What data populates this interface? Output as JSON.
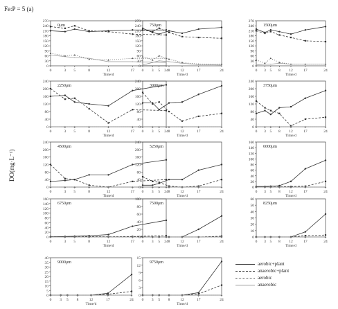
{
  "figure": {
    "title": "Fe:P = 5 (a)",
    "y_axis_title": "DO(mg·L⁻¹)",
    "x_axis_label": "Time/d"
  },
  "legend": [
    "aerobic+plant",
    "anaerobic+plant",
    "aerobic",
    "anaerobic"
  ],
  "chart_data": [
    {
      "type": "line",
      "title": "0μm",
      "x": [
        0,
        3,
        5,
        8,
        12,
        17,
        24
      ],
      "ylim": [
        0,
        270
      ],
      "yticks": [
        0,
        30,
        60,
        90,
        120,
        150,
        180,
        210,
        240,
        270
      ],
      "series": [
        {
          "name": "aerobic+plant",
          "values": [
            210,
            205,
            220,
            205,
            210,
            215,
            215
          ]
        },
        {
          "name": "anaerobic+plant",
          "values": [
            235,
            225,
            240,
            210,
            205,
            190,
            185
          ]
        },
        {
          "name": "aerobic",
          "values": [
            75,
            60,
            65,
            40,
            35,
            45,
            45
          ]
        },
        {
          "name": "anaerobic",
          "values": [
            65,
            55,
            50,
            45,
            25,
            25,
            20
          ]
        }
      ]
    },
    {
      "type": "line",
      "title": "750μm",
      "x": [
        0,
        3,
        5,
        8,
        12,
        17,
        24
      ],
      "ylim": [
        0,
        270
      ],
      "yticks": [
        0,
        30,
        60,
        90,
        120,
        150,
        180,
        210,
        240,
        270
      ],
      "series": [
        {
          "name": "aerobic+plant",
          "values": [
            225,
            200,
            190,
            210,
            195,
            220,
            230
          ]
        },
        {
          "name": "anaerobic+plant",
          "values": [
            215,
            205,
            225,
            200,
            175,
            170,
            165
          ]
        },
        {
          "name": "aerobic",
          "values": [
            55,
            35,
            60,
            40,
            20,
            10,
            10
          ]
        },
        {
          "name": "anaerobic",
          "values": [
            5,
            20,
            30,
            25,
            15,
            8,
            5
          ]
        }
      ]
    },
    {
      "type": "line",
      "title": "1500μm",
      "x": [
        0,
        3,
        5,
        8,
        12,
        17,
        24
      ],
      "ylim": [
        0,
        270
      ],
      "yticks": [
        0,
        30,
        60,
        90,
        120,
        150,
        180,
        210,
        240,
        270
      ],
      "series": [
        {
          "name": "aerobic+plant",
          "values": [
            220,
            200,
            215,
            205,
            190,
            215,
            235
          ]
        },
        {
          "name": "anaerobic+plant",
          "values": [
            210,
            195,
            205,
            185,
            170,
            150,
            145
          ]
        },
        {
          "name": "aerobic",
          "values": [
            35,
            15,
            45,
            20,
            10,
            10,
            10
          ]
        },
        {
          "name": "anaerobic",
          "values": [
            5,
            10,
            10,
            15,
            10,
            10,
            10
          ]
        }
      ]
    },
    {
      "type": "line",
      "title": "2250μm",
      "x": [
        0,
        3,
        5,
        8,
        12,
        17,
        24
      ],
      "ylim": [
        0,
        240
      ],
      "yticks": [
        0,
        40,
        80,
        120,
        160,
        200,
        240
      ],
      "series": [
        {
          "name": "aerobic+plant",
          "values": [
            160,
            165,
            130,
            120,
            110,
            190,
            220
          ]
        },
        {
          "name": "anaerobic+plant",
          "values": [
            200,
            145,
            150,
            95,
            20,
            90,
            85
          ]
        },
        {
          "name": "aerobic",
          "values": [
            0,
            0,
            0,
            0,
            0,
            0,
            0
          ]
        },
        {
          "name": "anaerobic",
          "values": [
            0,
            0,
            0,
            0,
            0,
            0,
            0
          ]
        }
      ]
    },
    {
      "type": "line",
      "title": "3000μm",
      "x": [
        0,
        3,
        5,
        8,
        12,
        17,
        24
      ],
      "ylim": [
        0,
        240
      ],
      "yticks": [
        0,
        40,
        80,
        120,
        160,
        200,
        240
      ],
      "series": [
        {
          "name": "aerobic+plant",
          "values": [
            125,
            125,
            90,
            125,
            130,
            170,
            215
          ]
        },
        {
          "name": "anaerobic+plant",
          "values": [
            180,
            120,
            130,
            80,
            30,
            55,
            70
          ]
        },
        {
          "name": "aerobic",
          "values": [
            0,
            0,
            0,
            0,
            0,
            0,
            0
          ]
        },
        {
          "name": "anaerobic",
          "values": [
            0,
            0,
            0,
            0,
            0,
            0,
            0
          ]
        }
      ]
    },
    {
      "type": "line",
      "title": "3750μm",
      "x": [
        0,
        3,
        5,
        8,
        12,
        17,
        24
      ],
      "ylim": [
        0,
        240
      ],
      "yticks": [
        0,
        40,
        80,
        120,
        160,
        200,
        240
      ],
      "series": [
        {
          "name": "aerobic+plant",
          "values": [
            70,
            85,
            65,
            100,
            105,
            150,
            190
          ]
        },
        {
          "name": "anaerobic+plant",
          "values": [
            135,
            100,
            85,
            70,
            5,
            40,
            50
          ]
        },
        {
          "name": "aerobic",
          "values": [
            0,
            0,
            0,
            0,
            0,
            0,
            0
          ]
        },
        {
          "name": "anaerobic",
          "values": [
            0,
            0,
            0,
            0,
            0,
            0,
            0
          ]
        }
      ]
    },
    {
      "type": "line",
      "title": "4500μm",
      "x": [
        0,
        3,
        5,
        8,
        12,
        17,
        24
      ],
      "ylim": [
        0,
        240
      ],
      "yticks": [
        0,
        40,
        80,
        120,
        160,
        200,
        240
      ],
      "series": [
        {
          "name": "aerobic+plant",
          "values": [
            30,
            35,
            40,
            65,
            65,
            120,
            145
          ]
        },
        {
          "name": "anaerobic+plant",
          "values": [
            120,
            45,
            40,
            10,
            0,
            30,
            40
          ]
        },
        {
          "name": "aerobic",
          "values": [
            0,
            0,
            0,
            0,
            0,
            0,
            0
          ]
        },
        {
          "name": "anaerobic",
          "values": [
            0,
            0,
            0,
            0,
            0,
            0,
            0
          ]
        }
      ]
    },
    {
      "type": "line",
      "title": "5250μm",
      "x": [
        0,
        3,
        5,
        8,
        12,
        17,
        24
      ],
      "ylim": [
        0,
        240
      ],
      "yticks": [
        0,
        40,
        80,
        120,
        160,
        200,
        240
      ],
      "series": [
        {
          "name": "aerobic+plant",
          "values": [
            10,
            10,
            20,
            40,
            40,
            90,
            120
          ]
        },
        {
          "name": "anaerobic+plant",
          "values": [
            55,
            30,
            25,
            5,
            0,
            5,
            40
          ]
        },
        {
          "name": "aerobic",
          "values": [
            0,
            0,
            0,
            0,
            0,
            0,
            0
          ]
        },
        {
          "name": "anaerobic",
          "values": [
            0,
            0,
            0,
            0,
            0,
            0,
            0
          ]
        }
      ]
    },
    {
      "type": "line",
      "title": "6000μm",
      "x": [
        0,
        3,
        5,
        8,
        12,
        17,
        24
      ],
      "ylim": [
        0,
        160
      ],
      "yticks": [
        0,
        20,
        40,
        60,
        80,
        100,
        120,
        140,
        160
      ],
      "series": [
        {
          "name": "aerobic+plant",
          "values": [
            2,
            2,
            3,
            5,
            20,
            65,
            95
          ]
        },
        {
          "name": "anaerobic+plant",
          "values": [
            1,
            1,
            1,
            1,
            2,
            3,
            20
          ]
        },
        {
          "name": "aerobic",
          "values": [
            0,
            0,
            0,
            0,
            0,
            0,
            0
          ]
        },
        {
          "name": "anaerobic",
          "values": [
            0,
            0,
            0,
            0,
            0,
            0,
            0
          ]
        }
      ]
    },
    {
      "type": "line",
      "title": "6750μm",
      "x": [
        0,
        3,
        5,
        8,
        12,
        17,
        24
      ],
      "ylim": [
        0,
        160
      ],
      "yticks": [
        0,
        20,
        40,
        60,
        80,
        100,
        120,
        140,
        160
      ],
      "series": [
        {
          "name": "aerobic+plant",
          "values": [
            1,
            2,
            3,
            5,
            10,
            45,
            70
          ]
        },
        {
          "name": "anaerobic+plant",
          "values": [
            1,
            1,
            1,
            2,
            1,
            2,
            5
          ]
        },
        {
          "name": "aerobic",
          "values": [
            0,
            0,
            0,
            0,
            0,
            0,
            0
          ]
        },
        {
          "name": "anaerobic",
          "values": [
            0,
            0,
            0,
            0,
            0,
            0,
            0
          ]
        }
      ]
    },
    {
      "type": "line",
      "title": "7500μm",
      "x": [
        0,
        3,
        5,
        8,
        12,
        17,
        24
      ],
      "ylim": [
        0,
        100
      ],
      "yticks": [
        0,
        20,
        40,
        60,
        80,
        100
      ],
      "series": [
        {
          "name": "aerobic+plant",
          "values": [
            0,
            0,
            0,
            0,
            0,
            20,
            55
          ]
        },
        {
          "name": "anaerobic+plant",
          "values": [
            0,
            0,
            0,
            0,
            0,
            0,
            2
          ]
        },
        {
          "name": "aerobic",
          "values": [
            0,
            0,
            0,
            0,
            0,
            0,
            0
          ]
        },
        {
          "name": "anaerobic",
          "values": [
            0,
            0,
            0,
            0,
            0,
            0,
            0
          ]
        }
      ]
    },
    {
      "type": "line",
      "title": "8250μm",
      "x": [
        0,
        3,
        5,
        8,
        12,
        17,
        24
      ],
      "ylim": [
        0,
        60
      ],
      "yticks": [
        0,
        10,
        20,
        30,
        40,
        50,
        60
      ],
      "series": [
        {
          "name": "aerobic+plant",
          "values": [
            0,
            0,
            0,
            0,
            0,
            8,
            36
          ]
        },
        {
          "name": "anaerobic+plant",
          "values": [
            0,
            0,
            0,
            0,
            0,
            2,
            3
          ]
        },
        {
          "name": "aerobic",
          "values": [
            0,
            0,
            0,
            0,
            0,
            0,
            0
          ]
        },
        {
          "name": "anaerobic",
          "values": [
            0,
            0,
            0,
            0,
            0,
            0,
            0
          ]
        }
      ]
    },
    {
      "type": "line",
      "title": "9000μm",
      "x": [
        0,
        3,
        5,
        8,
        12,
        17,
        24
      ],
      "ylim": [
        0,
        40
      ],
      "yticks": [
        0,
        5,
        10,
        15,
        20,
        25,
        30,
        35,
        40
      ],
      "series": [
        {
          "name": "aerobic+plant",
          "values": [
            0,
            0,
            0,
            0,
            0,
            2,
            22
          ]
        },
        {
          "name": "anaerobic+plant",
          "values": [
            0,
            0,
            0,
            0,
            0,
            1,
            4
          ]
        },
        {
          "name": "aerobic",
          "values": [
            0,
            0,
            0,
            0,
            0,
            0,
            0
          ]
        },
        {
          "name": "anaerobic",
          "values": [
            0,
            0,
            0,
            0,
            0,
            0,
            0
          ]
        }
      ]
    },
    {
      "type": "line",
      "title": "9750μm",
      "x": [
        0,
        3,
        5,
        8,
        12,
        17,
        24
      ],
      "ylim": [
        0,
        15
      ],
      "yticks": [
        0,
        3,
        6,
        9,
        12,
        15
      ],
      "series": [
        {
          "name": "aerobic+plant",
          "values": [
            0,
            0,
            0,
            0,
            0,
            1,
            13.5
          ]
        },
        {
          "name": "anaerobic+plant",
          "values": [
            0,
            0,
            0,
            0,
            0,
            0.5,
            4
          ]
        },
        {
          "name": "aerobic",
          "values": [
            0,
            0,
            0,
            0,
            0,
            0,
            0
          ]
        },
        {
          "name": "anaerobic",
          "values": [
            0,
            0,
            0,
            0,
            0,
            0,
            0
          ]
        }
      ]
    }
  ]
}
